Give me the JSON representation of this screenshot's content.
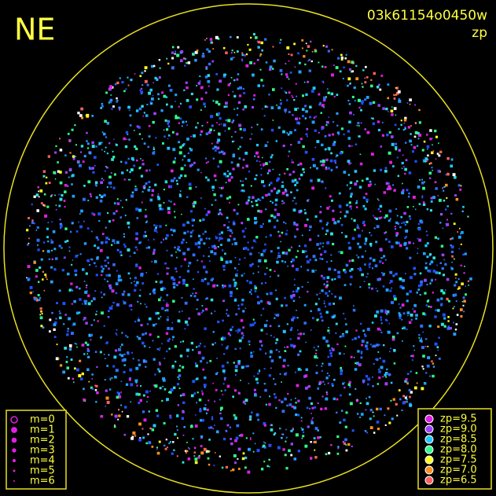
{
  "header": {
    "title": "NE",
    "id": "03k61154o0450w",
    "subtitle": "zp"
  },
  "magnitude_legend": [
    {
      "label": "m=0"
    },
    {
      "label": "m=1"
    },
    {
      "label": "m=2"
    },
    {
      "label": "m=3"
    },
    {
      "label": "m=4"
    },
    {
      "label": "m=5"
    },
    {
      "label": "m=6"
    }
  ],
  "zp_legend": [
    {
      "label": "zp=9.5",
      "color": "#e020e0"
    },
    {
      "label": "zp=9.0",
      "color": "#a040ff"
    },
    {
      "label": "zp=8.5",
      "color": "#20c8ff"
    },
    {
      "label": "zp=8.0",
      "color": "#30ff90"
    },
    {
      "label": "zp=7.5",
      "color": "#ffff20"
    },
    {
      "label": "zp=7.0",
      "color": "#ff9020"
    },
    {
      "label": "zp=6.5",
      "color": "#ff6060"
    }
  ]
}
